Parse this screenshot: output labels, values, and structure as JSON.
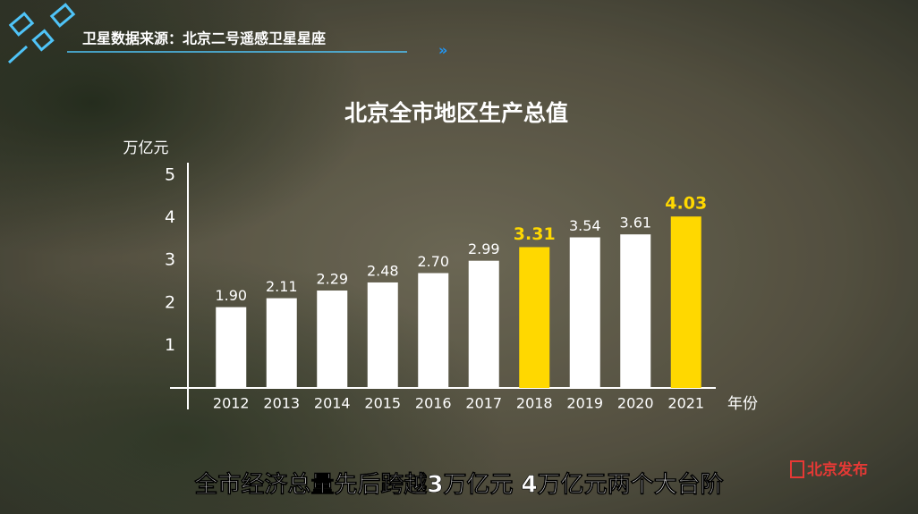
{
  "header": {
    "source": "卫星数据来源：北京二号遥感卫星星座"
  },
  "chart_data": {
    "type": "bar",
    "title": "北京全市地区生产总值",
    "y_label": "万亿元",
    "x_label": "年份",
    "categories": [
      "2012",
      "2013",
      "2014",
      "2015",
      "2016",
      "2017",
      "2018",
      "2019",
      "2020",
      "2021"
    ],
    "values": [
      1.9,
      2.11,
      2.29,
      2.48,
      2.7,
      2.99,
      3.31,
      3.54,
      3.61,
      4.03
    ],
    "value_labels": [
      "1.90",
      "2.11",
      "2.29",
      "2.48",
      "2.70",
      "2.99",
      "3.31",
      "3.54",
      "3.61",
      "4.03"
    ],
    "colors": [
      "#ffffff",
      "#ffffff",
      "#ffffff",
      "#ffffff",
      "#ffffff",
      "#ffffff",
      "#ffd800",
      "#ffffff",
      "#ffffff",
      "#ffd800"
    ],
    "ylim": [
      0,
      5.4
    ],
    "yticks": [
      1,
      2,
      3,
      4,
      5
    ],
    "grid": false
  },
  "caption": "全市经济总量先后跨越3万亿元 4万亿元两个大台阶",
  "logo": "北京发布"
}
